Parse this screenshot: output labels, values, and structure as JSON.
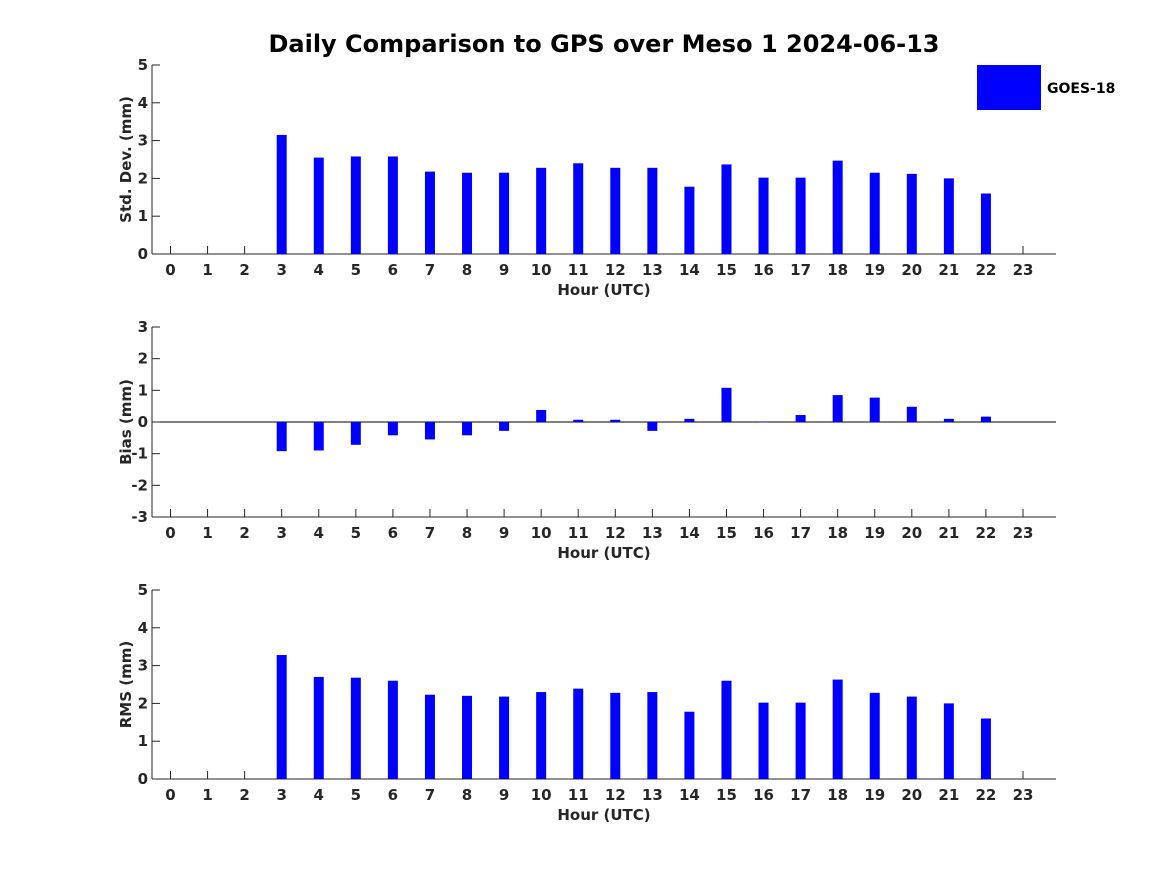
{
  "chart_data": {
    "type": "bar",
    "title": "Daily Comparison to GPS over Meso 1 2024-06-13",
    "legend": {
      "label": "GOES-18",
      "color": "#0000ff",
      "placement": "top-right"
    },
    "categories": [
      "0",
      "1",
      "2",
      "3",
      "4",
      "5",
      "6",
      "7",
      "8",
      "9",
      "10",
      "11",
      "12",
      "13",
      "14",
      "15",
      "16",
      "17",
      "18",
      "19",
      "20",
      "21",
      "22",
      "23"
    ],
    "panels": [
      {
        "id": "stddev",
        "ylabel": "Std. Dev. (mm)",
        "xlabel": "Hour (UTC)",
        "ylim": [
          0,
          5
        ],
        "yticks": [
          "0",
          "1",
          "2",
          "3",
          "4",
          "5"
        ],
        "series": [
          {
            "name": "GOES-18",
            "values": [
              null,
              null,
              null,
              3.15,
              2.55,
              2.58,
              2.58,
              2.18,
              2.15,
              2.15,
              2.28,
              2.4,
              2.28,
              2.28,
              1.78,
              2.37,
              2.02,
              2.02,
              2.47,
              2.15,
              2.12,
              2.0,
              1.6,
              null
            ]
          }
        ]
      },
      {
        "id": "bias",
        "ylabel": "Bias (mm)",
        "xlabel": "Hour (UTC)",
        "ylim": [
          -3,
          3
        ],
        "yticks": [
          "-3",
          "-2",
          "-1",
          "0",
          "1",
          "2",
          "3"
        ],
        "series": [
          {
            "name": "GOES-18",
            "values": [
              null,
              null,
              null,
              -0.92,
              -0.9,
              -0.72,
              -0.42,
              -0.55,
              -0.42,
              -0.28,
              0.38,
              0.07,
              0.07,
              -0.28,
              0.1,
              1.08,
              0.0,
              0.22,
              0.85,
              0.77,
              0.48,
              0.1,
              0.17,
              null
            ]
          }
        ]
      },
      {
        "id": "rms",
        "ylabel": "RMS (mm)",
        "xlabel": "Hour (UTC)",
        "ylim": [
          0,
          5
        ],
        "yticks": [
          "0",
          "1",
          "2",
          "3",
          "4",
          "5"
        ],
        "series": [
          {
            "name": "GOES-18",
            "values": [
              null,
              null,
              null,
              3.28,
              2.7,
              2.68,
              2.6,
              2.23,
              2.2,
              2.18,
              2.3,
              2.39,
              2.28,
              2.3,
              1.78,
              2.6,
              2.02,
              2.02,
              2.63,
              2.28,
              2.18,
              2.0,
              1.6,
              null
            ]
          }
        ]
      }
    ]
  }
}
